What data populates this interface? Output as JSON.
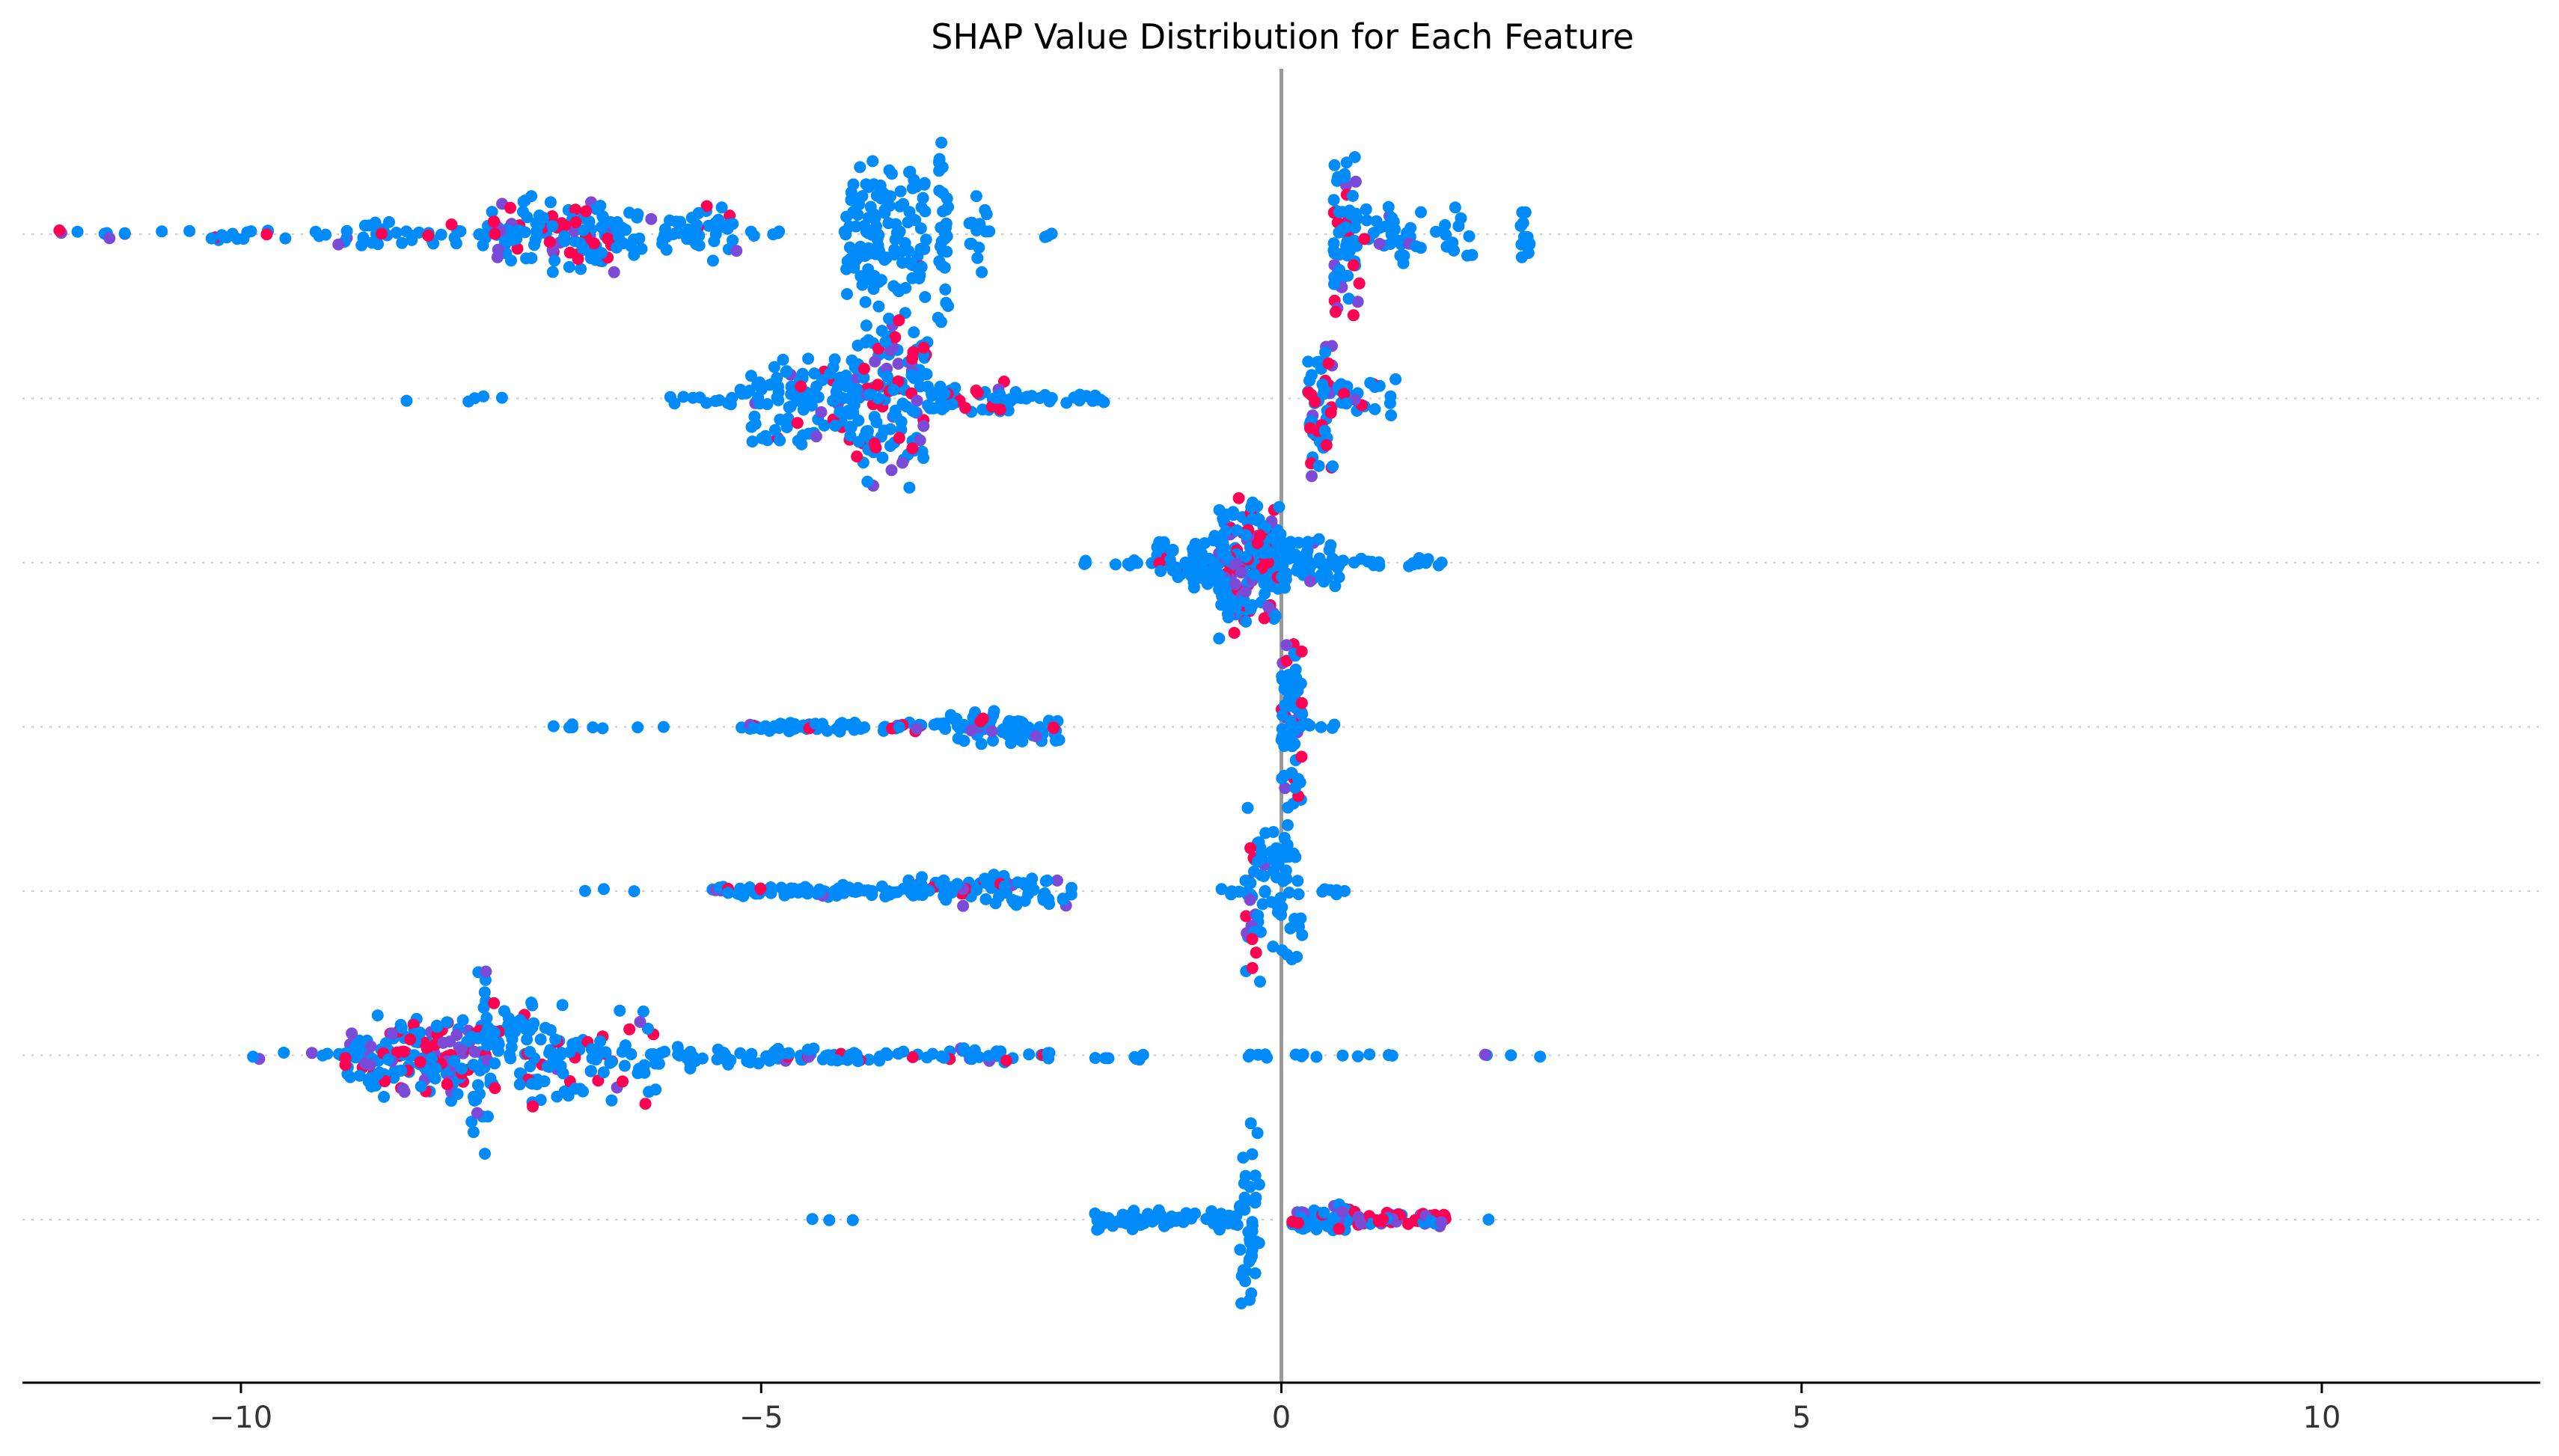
{
  "chart_data": {
    "type": "scatter",
    "title": "SHAP Value Distribution for Each Feature",
    "xlabel": "",
    "ylabel": "",
    "xlim": [
      -12.1,
      12.1
    ],
    "x_ticks": [
      -10,
      -5,
      0,
      5,
      10
    ],
    "x_tick_labels": [
      "−10",
      "−5",
      "0",
      "5",
      "10"
    ],
    "zero_line": true,
    "grid": false,
    "legend": "none",
    "colors": {
      "low": "#008bfb",
      "high": "#ff0052",
      "mid": "#7b4bd8",
      "zero_line": "#999999"
    },
    "rows": [
      {
        "clusters": [
          {
            "min": -11.9,
            "max": -11.0,
            "n": 8,
            "h": 0.1,
            "red": 0.7
          },
          {
            "min": -11.0,
            "max": -9.2,
            "n": 18,
            "h": 0.12,
            "red": 0.1
          },
          {
            "min": -9.2,
            "max": -7.6,
            "n": 40,
            "h": 0.22,
            "red": 0.1
          },
          {
            "min": -7.6,
            "max": -6.4,
            "n": 110,
            "h": 0.6,
            "red": 0.4
          },
          {
            "min": -6.4,
            "max": -5.2,
            "n": 60,
            "h": 0.4,
            "red": 0.1
          },
          {
            "min": -5.2,
            "max": -4.8,
            "n": 5,
            "h": 0.06,
            "red": 0
          },
          {
            "min": -4.2,
            "max": -3.4,
            "n": 120,
            "h": 1.05,
            "red": 0.02
          },
          {
            "min": -3.3,
            "max": -3.2,
            "n": 30,
            "h": 1.45,
            "red": 0
          },
          {
            "min": -3.0,
            "max": -2.8,
            "n": 14,
            "h": 0.6,
            "red": 0
          },
          {
            "min": -2.3,
            "max": -2.2,
            "n": 3,
            "h": 0.05,
            "red": 0
          },
          {
            "min": 0.5,
            "max": 0.75,
            "n": 60,
            "h": 1.3,
            "red": 0.3
          },
          {
            "min": 0.75,
            "max": 1.3,
            "n": 30,
            "h": 0.5,
            "red": 0.1
          },
          {
            "min": 1.3,
            "max": 2.0,
            "n": 14,
            "h": 0.4,
            "red": 0
          },
          {
            "min": 2.3,
            "max": 2.4,
            "n": 12,
            "h": 0.55,
            "red": 0
          }
        ]
      },
      {
        "clusters": [
          {
            "min": -8.6,
            "max": -6.9,
            "n": 5,
            "h": 0.05,
            "red": 0
          },
          {
            "min": -6.0,
            "max": -5.1,
            "n": 15,
            "h": 0.15,
            "red": 0
          },
          {
            "min": -5.1,
            "max": -4.1,
            "n": 110,
            "h": 0.7,
            "red": 0.15
          },
          {
            "min": -4.1,
            "max": -3.4,
            "n": 130,
            "h": 1.4,
            "red": 0.35
          },
          {
            "min": -3.4,
            "max": -2.6,
            "n": 50,
            "h": 0.28,
            "red": 0.2
          },
          {
            "min": -2.6,
            "max": -1.7,
            "n": 22,
            "h": 0.1,
            "red": 0
          },
          {
            "min": 0.25,
            "max": 0.5,
            "n": 50,
            "h": 1.2,
            "red": 0.35
          },
          {
            "min": 0.5,
            "max": 1.1,
            "n": 25,
            "h": 0.3,
            "red": 0.1
          }
        ]
      },
      {
        "clusters": [
          {
            "min": -1.9,
            "max": -1.2,
            "n": 10,
            "h": 0.05,
            "red": 0
          },
          {
            "min": -1.2,
            "max": -0.6,
            "n": 60,
            "h": 0.4,
            "red": 0.1
          },
          {
            "min": -0.6,
            "max": 0.0,
            "n": 190,
            "h": 1.15,
            "red": 0.35
          },
          {
            "min": 0.0,
            "max": 0.6,
            "n": 60,
            "h": 0.4,
            "red": 0.05
          },
          {
            "min": 0.6,
            "max": 1.6,
            "n": 16,
            "h": 0.07,
            "red": 0
          }
        ]
      },
      {
        "clusters": [
          {
            "min": -7.0,
            "max": -5.8,
            "n": 8,
            "h": 0.05,
            "red": 0
          },
          {
            "min": -5.2,
            "max": -3.2,
            "n": 80,
            "h": 0.08,
            "red": 0.15
          },
          {
            "min": -3.2,
            "max": -2.1,
            "n": 70,
            "h": 0.25,
            "red": 0.12
          },
          {
            "min": 0.0,
            "max": 0.2,
            "n": 70,
            "h": 1.4,
            "red": 0.25
          },
          {
            "min": 0.2,
            "max": 0.55,
            "n": 5,
            "h": 0.05,
            "red": 0
          }
        ]
      },
      {
        "clusters": [
          {
            "min": -7.2,
            "max": -6.0,
            "n": 3,
            "h": 0.03,
            "red": 0
          },
          {
            "min": -5.5,
            "max": -3.6,
            "n": 70,
            "h": 0.1,
            "red": 0.1
          },
          {
            "min": -3.6,
            "max": -2.0,
            "n": 80,
            "h": 0.25,
            "red": 0.15
          },
          {
            "min": -0.6,
            "max": -0.4,
            "n": 4,
            "h": 0.12,
            "red": 0
          },
          {
            "min": -0.35,
            "max": -0.15,
            "n": 40,
            "h": 1.45,
            "red": 0.35
          },
          {
            "min": -0.1,
            "max": 0.2,
            "n": 40,
            "h": 1.3,
            "red": 0
          },
          {
            "min": 0.3,
            "max": 0.7,
            "n": 6,
            "h": 0.06,
            "red": 0
          }
        ]
      },
      {
        "clusters": [
          {
            "min": -10.0,
            "max": -9.0,
            "n": 8,
            "h": 0.06,
            "red": 0.3
          },
          {
            "min": -9.0,
            "max": -7.8,
            "n": 170,
            "h": 0.65,
            "red": 0.45
          },
          {
            "min": -7.8,
            "max": -7.6,
            "n": 40,
            "h": 1.45,
            "red": 0.15
          },
          {
            "min": -7.6,
            "max": -6.0,
            "n": 130,
            "h": 0.85,
            "red": 0.2
          },
          {
            "min": -6.0,
            "max": -4.8,
            "n": 35,
            "h": 0.2,
            "red": 0
          },
          {
            "min": -4.8,
            "max": -2.2,
            "n": 70,
            "h": 0.12,
            "red": 0.08
          },
          {
            "min": -1.8,
            "max": -1.3,
            "n": 8,
            "h": 0.08,
            "red": 0
          },
          {
            "min": -0.6,
            "max": 1.5,
            "n": 14,
            "h": 0.04,
            "red": 0
          },
          {
            "min": 1.9,
            "max": 2.5,
            "n": 4,
            "h": 0.03,
            "red": 0.5
          }
        ]
      },
      {
        "clusters": [
          {
            "min": -4.6,
            "max": -3.8,
            "n": 3,
            "h": 0.02,
            "red": 0
          },
          {
            "min": -1.8,
            "max": -0.4,
            "n": 70,
            "h": 0.16,
            "red": 0
          },
          {
            "min": -0.4,
            "max": -0.2,
            "n": 40,
            "h": 1.5,
            "red": 0
          },
          {
            "min": 0.1,
            "max": 0.7,
            "n": 60,
            "h": 0.25,
            "red": 0.2
          },
          {
            "min": 0.7,
            "max": 1.6,
            "n": 60,
            "h": 0.12,
            "red": 0.75
          },
          {
            "min": 1.9,
            "max": 2.0,
            "n": 1,
            "h": 0.0,
            "red": 0
          }
        ]
      }
    ]
  }
}
